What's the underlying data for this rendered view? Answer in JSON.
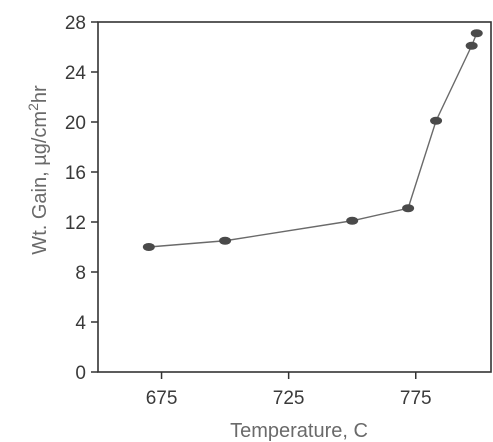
{
  "chart_data": {
    "type": "scatter",
    "title": "",
    "xlabel": "Temperature, C",
    "ylabel_main": "Wt. Gain, µg/cm",
    "ylabel_sup": "2",
    "ylabel_tail": "hr",
    "xlim": [
      650,
      805
    ],
    "ylim": [
      0,
      28
    ],
    "xticks": [
      675,
      725,
      775
    ],
    "xtick_labels": [
      "675",
      "725",
      "775"
    ],
    "yticks": [
      0,
      4,
      8,
      12,
      16,
      20,
      24,
      28
    ],
    "ytick_labels": [
      "0",
      "4",
      "8",
      "12",
      "16",
      "20",
      "24",
      "28"
    ],
    "grid": false,
    "series": [
      {
        "marker": "ellipse",
        "line": true,
        "color": "#4a4a4a",
        "x": [
          670,
          700,
          750,
          772,
          783,
          797,
          799
        ],
        "y": [
          10.0,
          10.5,
          12.1,
          13.1,
          20.1,
          26.1,
          27.1
        ]
      }
    ]
  }
}
